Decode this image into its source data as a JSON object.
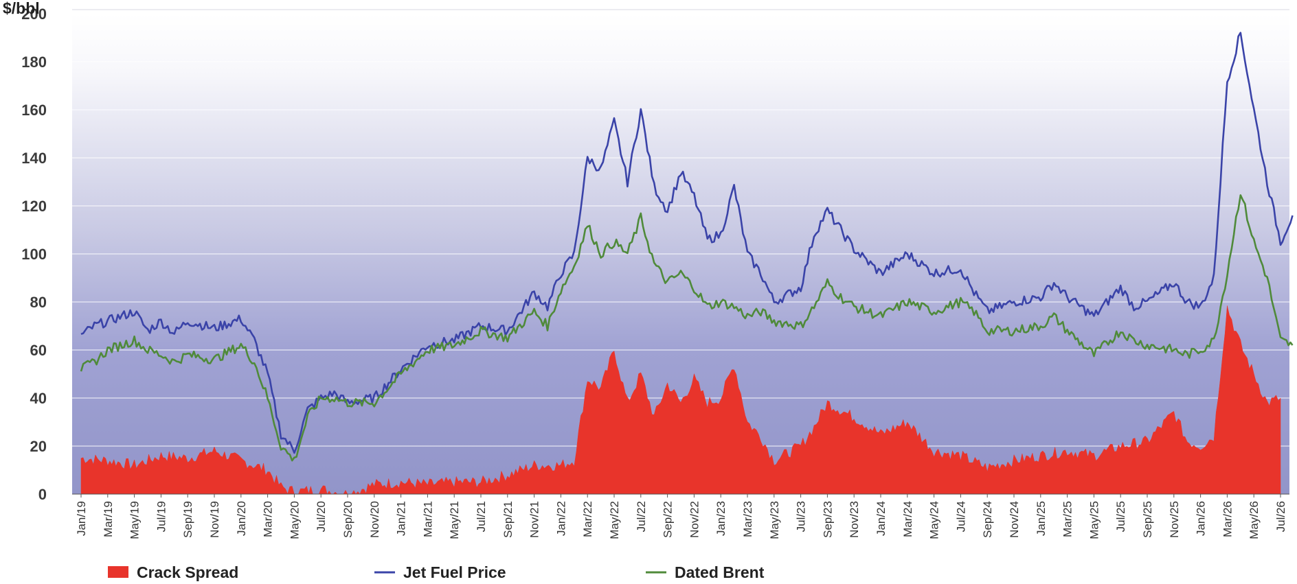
{
  "chart_data": {
    "type": "line",
    "y_unit_label": "$/bbl",
    "ylim": [
      0,
      200
    ],
    "yticks": [
      0,
      20,
      40,
      60,
      80,
      100,
      120,
      140,
      160,
      180,
      200
    ],
    "grid": true,
    "legend_position": "bottom",
    "x_tick_labels": [
      "Jan/19",
      "Mar/19",
      "May/19",
      "Jul/19",
      "Sep/19",
      "Nov/19",
      "Jan/20",
      "Mar/20",
      "May/20",
      "Jul/20",
      "Sep/20",
      "Nov/20",
      "Jan/21",
      "Mar/21",
      "May/21",
      "Jul/21",
      "Sep/21",
      "Nov/21",
      "Jan/22",
      "Mar/22",
      "May/22",
      "Jul/22",
      "Sep/22",
      "Nov/22",
      "Jan/23",
      "Mar/23",
      "May/23",
      "Jul/23",
      "Sep/23",
      "Nov/23",
      "Jan/24",
      "Mar/24",
      "May/24",
      "Jul/24",
      "Sep/24",
      "Nov/24",
      "Jan/25",
      "Mar/25",
      "May/25",
      "Jul/25",
      "Sep/25",
      "Nov/25",
      "Jan/26",
      "Mar/26",
      "May/26",
      "Jul/26"
    ],
    "series": [
      {
        "name": "Crack Spread",
        "render": "area",
        "color": "#e8342b",
        "points": [
          [
            "Jan/19",
            15
          ],
          [
            "Mar/19",
            14
          ],
          [
            "May/19",
            12
          ],
          [
            "Jul/19",
            16
          ],
          [
            "Sep/19",
            15
          ],
          [
            "Nov/19",
            18
          ],
          [
            "Jan/20",
            14
          ],
          [
            "Mar/20",
            10
          ],
          [
            "Apr/20",
            3
          ],
          [
            "May/20",
            1
          ],
          [
            "Jul/20",
            2
          ],
          [
            "Sep/20",
            0
          ],
          [
            "Nov/20",
            4
          ],
          [
            "Jan/21",
            5
          ],
          [
            "Mar/21",
            4
          ],
          [
            "May/21",
            5
          ],
          [
            "Jul/21",
            5
          ],
          [
            "Sep/21",
            8
          ],
          [
            "Nov/21",
            12
          ],
          [
            "Jan/22",
            12
          ],
          [
            "Feb/22",
            14
          ],
          [
            "Mar/22",
            48
          ],
          [
            "Apr/22",
            44
          ],
          [
            "May/22",
            60
          ],
          [
            "Jun/22",
            38
          ],
          [
            "Jul/22",
            50
          ],
          [
            "Aug/22",
            32
          ],
          [
            "Sep/22",
            46
          ],
          [
            "Oct/22",
            38
          ],
          [
            "Nov/22",
            48
          ],
          [
            "Dec/22",
            38
          ],
          [
            "Jan/23",
            40
          ],
          [
            "Feb/23",
            54
          ],
          [
            "Mar/23",
            30
          ],
          [
            "Apr/23",
            24
          ],
          [
            "May/23",
            14
          ],
          [
            "Jul/23",
            20
          ],
          [
            "Aug/23",
            28
          ],
          [
            "Sep/23",
            38
          ],
          [
            "Nov/23",
            32
          ],
          [
            "Jan/24",
            25
          ],
          [
            "Mar/24",
            30
          ],
          [
            "May/24",
            18
          ],
          [
            "Jul/24",
            16
          ],
          [
            "Sep/24",
            11
          ],
          [
            "Nov/24",
            14
          ],
          [
            "Jan/25",
            16
          ],
          [
            "Mar/25",
            18
          ],
          [
            "May/25",
            16
          ],
          [
            "Jul/25",
            20
          ],
          [
            "Sep/25",
            22
          ],
          [
            "Nov/25",
            34
          ],
          [
            "Dec/25",
            22
          ],
          [
            "Jan/26",
            20
          ],
          [
            "Feb/26",
            24
          ],
          [
            "Mar/26",
            78
          ],
          [
            "Apr/26",
            62
          ],
          [
            "May/26",
            50
          ],
          [
            "Jun/26",
            38
          ],
          [
            "Jul/26",
            40
          ]
        ]
      },
      {
        "name": "Jet Fuel Price",
        "render": "line",
        "color": "#3a43a8",
        "points": [
          [
            "Jan/19",
            66
          ],
          [
            "Feb/19",
            70
          ],
          [
            "Mar/19",
            72
          ],
          [
            "May/19",
            76
          ],
          [
            "Jun/19",
            68
          ],
          [
            "Jul/19",
            72
          ],
          [
            "Aug/19",
            67
          ],
          [
            "Sep/19",
            72
          ],
          [
            "Nov/19",
            69
          ],
          [
            "Jan/20",
            73
          ],
          [
            "Feb/20",
            64
          ],
          [
            "Mar/20",
            50
          ],
          [
            "Apr/20",
            25
          ],
          [
            "May/20",
            18
          ],
          [
            "Jun/20",
            35
          ],
          [
            "Jul/20",
            40
          ],
          [
            "Aug/20",
            42
          ],
          [
            "Sep/20",
            38
          ],
          [
            "Nov/20",
            40
          ],
          [
            "Jan/21",
            52
          ],
          [
            "Mar/21",
            62
          ],
          [
            "May/21",
            64
          ],
          [
            "Jul/21",
            70
          ],
          [
            "Sep/21",
            68
          ],
          [
            "Nov/21",
            84
          ],
          [
            "Dec/21",
            78
          ],
          [
            "Jan/22",
            92
          ],
          [
            "Feb/22",
            100
          ],
          [
            "Mar/22",
            140
          ],
          [
            "Apr/22",
            135
          ],
          [
            "May/22",
            155
          ],
          [
            "Jun/22",
            130
          ],
          [
            "Jul/22",
            160
          ],
          [
            "Aug/22",
            128
          ],
          [
            "Sep/22",
            118
          ],
          [
            "Oct/22",
            134
          ],
          [
            "Nov/22",
            124
          ],
          [
            "Dec/22",
            106
          ],
          [
            "Jan/23",
            108
          ],
          [
            "Feb/23",
            128
          ],
          [
            "Mar/23",
            100
          ],
          [
            "Apr/23",
            92
          ],
          [
            "May/23",
            80
          ],
          [
            "Jul/23",
            86
          ],
          [
            "Aug/23",
            108
          ],
          [
            "Sep/23",
            118
          ],
          [
            "Oct/23",
            110
          ],
          [
            "Nov/23",
            102
          ],
          [
            "Jan/24",
            92
          ],
          [
            "Mar/24",
            100
          ],
          [
            "May/24",
            92
          ],
          [
            "Jul/24",
            94
          ],
          [
            "Aug/24",
            84
          ],
          [
            "Sep/24",
            76
          ],
          [
            "Nov/24",
            80
          ],
          [
            "Jan/25",
            82
          ],
          [
            "Feb/25",
            88
          ],
          [
            "Mar/25",
            82
          ],
          [
            "May/25",
            74
          ],
          [
            "Jul/25",
            86
          ],
          [
            "Aug/25",
            78
          ],
          [
            "Sep/25",
            80
          ],
          [
            "Nov/25",
            88
          ],
          [
            "Dec/25",
            80
          ],
          [
            "Jan/26",
            78
          ],
          [
            "Feb/26",
            90
          ],
          [
            "Mar/26",
            172
          ],
          [
            "Apr/26",
            192
          ],
          [
            "May/26",
            160
          ],
          [
            "Jun/26",
            130
          ],
          [
            "Jul/26",
            105
          ],
          [
            "Jul-end/26",
            116
          ]
        ]
      },
      {
        "name": "Dated Brent",
        "render": "line",
        "color": "#4f8a3a",
        "points": [
          [
            "Jan/19",
            52
          ],
          [
            "Feb/19",
            55
          ],
          [
            "Mar/19",
            60
          ],
          [
            "May/19",
            64
          ],
          [
            "Jun/19",
            60
          ],
          [
            "Jul/19",
            58
          ],
          [
            "Aug/19",
            55
          ],
          [
            "Sep/19",
            58
          ],
          [
            "Nov/19",
            56
          ],
          [
            "Jan/20",
            62
          ],
          [
            "Feb/20",
            55
          ],
          [
            "Mar/20",
            40
          ],
          [
            "Apr/20",
            20
          ],
          [
            "May/20",
            14
          ],
          [
            "Jun/20",
            32
          ],
          [
            "Jul/20",
            40
          ],
          [
            "Aug/20",
            40
          ],
          [
            "Sep/20",
            38
          ],
          [
            "Nov/20",
            38
          ],
          [
            "Jan/21",
            50
          ],
          [
            "Mar/21",
            60
          ],
          [
            "May/21",
            62
          ],
          [
            "Jul/21",
            68
          ],
          [
            "Sep/21",
            65
          ],
          [
            "Nov/21",
            76
          ],
          [
            "Dec/21",
            70
          ],
          [
            "Jan/22",
            85
          ],
          [
            "Feb/22",
            95
          ],
          [
            "Mar/22",
            112
          ],
          [
            "Apr/22",
            100
          ],
          [
            "May/22",
            105
          ],
          [
            "Jun/22",
            100
          ],
          [
            "Jul/22",
            115
          ],
          [
            "Aug/22",
            96
          ],
          [
            "Sep/22",
            88
          ],
          [
            "Oct/22",
            92
          ],
          [
            "Nov/22",
            86
          ],
          [
            "Dec/22",
            78
          ],
          [
            "Jan/23",
            80
          ],
          [
            "Feb/23",
            78
          ],
          [
            "Mar/23",
            74
          ],
          [
            "Apr/23",
            76
          ],
          [
            "May/23",
            72
          ],
          [
            "Jul/23",
            70
          ],
          [
            "Aug/23",
            78
          ],
          [
            "Sep/23",
            88
          ],
          [
            "Oct/23",
            82
          ],
          [
            "Nov/23",
            78
          ],
          [
            "Jan/24",
            74
          ],
          [
            "Mar/24",
            80
          ],
          [
            "May/24",
            76
          ],
          [
            "Jul/24",
            80
          ],
          [
            "Aug/24",
            76
          ],
          [
            "Sep/24",
            68
          ],
          [
            "Nov/24",
            68
          ],
          [
            "Jan/25",
            70
          ],
          [
            "Feb/25",
            74
          ],
          [
            "Mar/25",
            68
          ],
          [
            "May/25",
            58
          ],
          [
            "Jul/25",
            68
          ],
          [
            "Aug/25",
            64
          ],
          [
            "Sep/25",
            62
          ],
          [
            "Nov/25",
            60
          ],
          [
            "Dec/25",
            58
          ],
          [
            "Jan/26",
            60
          ],
          [
            "Feb/26",
            64
          ],
          [
            "Mar/26",
            92
          ],
          [
            "Apr/26",
            126
          ],
          [
            "May/26",
            105
          ],
          [
            "Jun/26",
            90
          ],
          [
            "Jul/26",
            64
          ],
          [
            "Jul-end/26",
            62
          ]
        ]
      }
    ]
  }
}
